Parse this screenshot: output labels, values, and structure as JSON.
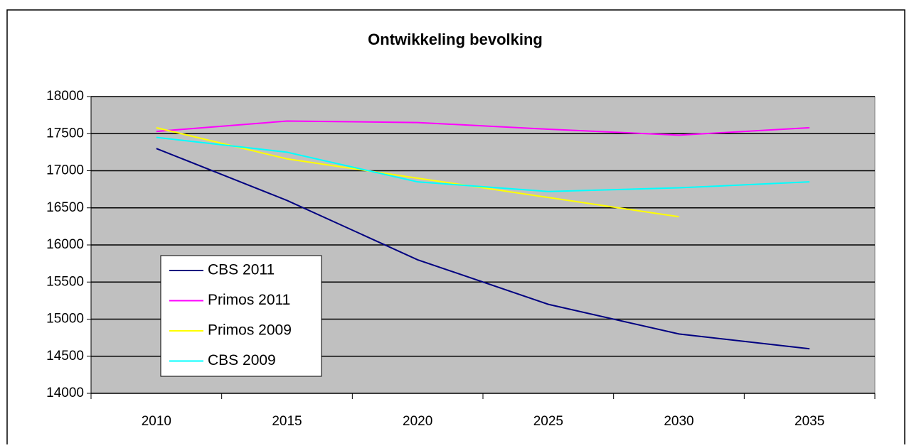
{
  "chart_data": {
    "type": "line",
    "title": "Ontwikkeling bevolking",
    "categories": [
      "2010",
      "2015",
      "2020",
      "2025",
      "2030",
      "2035"
    ],
    "series": [
      {
        "name": "CBS 2011",
        "color": "#000080",
        "values": [
          17300,
          16600,
          15800,
          15200,
          14800,
          14600
        ]
      },
      {
        "name": "Primos 2011",
        "color": "#ff00ff",
        "values": [
          17530,
          17670,
          17650,
          17560,
          17480,
          17580
        ]
      },
      {
        "name": "Primos 2009",
        "color": "#ffff00",
        "values": [
          17580,
          17160,
          16900,
          16640,
          16380,
          null
        ]
      },
      {
        "name": "CBS 2009",
        "color": "#00ffff",
        "values": [
          17450,
          17250,
          16850,
          16720,
          16770,
          16850
        ]
      }
    ],
    "ylim": [
      14000,
      18000
    ],
    "yticks": [
      14000,
      14500,
      15000,
      15500,
      16000,
      16500,
      17000,
      17500,
      18000
    ],
    "grid": true,
    "legend": "lower left",
    "plot_background": "#c0c0c0"
  }
}
